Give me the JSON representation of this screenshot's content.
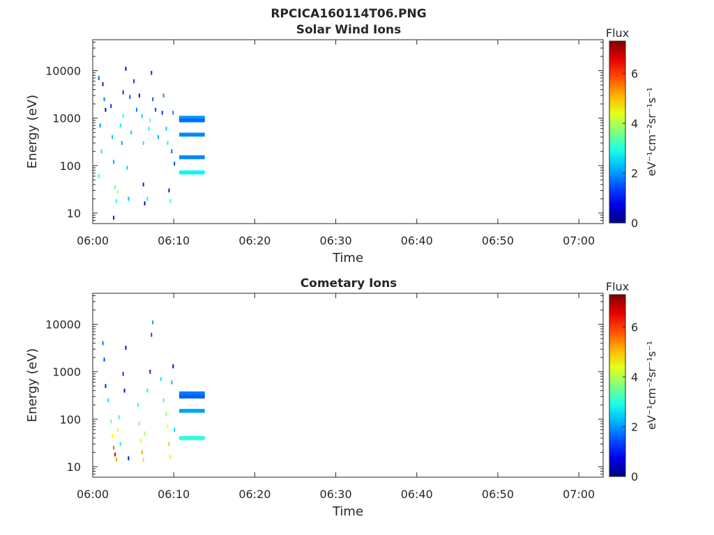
{
  "figure": {
    "title": "RPCICA160114T06.PNG"
  },
  "colors": {
    "axis": "#262626",
    "background": "#ffffff"
  },
  "chart_data": [
    {
      "type": "heatmap",
      "title": "Solar Wind Ions",
      "xlabel": "Time",
      "ylabel": "Energy (eV)",
      "y_scale": "log",
      "xlim": [
        "06:00",
        "07:03"
      ],
      "ylim": [
        6,
        45000
      ],
      "xticks": [
        "06:00",
        "06:10",
        "06:20",
        "06:30",
        "06:40",
        "06:50",
        "07:00"
      ],
      "yticks": [
        "10",
        "100",
        "1000",
        "10000"
      ],
      "grid": false,
      "colorbar": {
        "label": "Flux",
        "unit": "eV⁻¹cm⁻²sr⁻¹s⁻¹",
        "range": [
          0,
          7.3
        ],
        "ticks": [
          "0",
          "2",
          "4",
          "6"
        ],
        "colormap": "jet"
      },
      "cells": [
        {
          "t": "06:00:40",
          "e": 7000,
          "v": 1.6
        },
        {
          "t": "06:01:10",
          "e": 5200,
          "v": 1.1
        },
        {
          "t": "06:01:20",
          "e": 2500,
          "v": 1.8
        },
        {
          "t": "06:01:30",
          "e": 1500,
          "v": 0.7
        },
        {
          "t": "06:00:50",
          "e": 700,
          "v": 2.0
        },
        {
          "t": "06:01:00",
          "e": 200,
          "v": 2.6
        },
        {
          "t": "06:00:40",
          "e": 60,
          "v": 3.0
        },
        {
          "t": "06:02:10",
          "e": 1800,
          "v": 1.3
        },
        {
          "t": "06:02:20",
          "e": 400,
          "v": 2.3
        },
        {
          "t": "06:02:30",
          "e": 120,
          "v": 2.1
        },
        {
          "t": "06:02:40",
          "e": 35,
          "v": 3.4
        },
        {
          "t": "06:02:50",
          "e": 18,
          "v": 2.8
        },
        {
          "t": "06:02:30",
          "e": 8,
          "v": 1.0
        },
        {
          "t": "06:03:00",
          "e": 28,
          "v": 4.0
        },
        {
          "t": "06:03:20",
          "e": 700,
          "v": 2.6
        },
        {
          "t": "06:03:30",
          "e": 300,
          "v": 2.1
        },
        {
          "t": "06:03:40",
          "e": 1100,
          "v": 3.3
        },
        {
          "t": "06:03:40",
          "e": 3500,
          "v": 1.2
        },
        {
          "t": "06:04:00",
          "e": 11000,
          "v": 0.8
        },
        {
          "t": "06:04:10",
          "e": 90,
          "v": 2.4
        },
        {
          "t": "06:04:20",
          "e": 20,
          "v": 2.2
        },
        {
          "t": "06:04:30",
          "e": 2800,
          "v": 1.5
        },
        {
          "t": "06:04:40",
          "e": 500,
          "v": 2.4
        },
        {
          "t": "06:05:00",
          "e": 6000,
          "v": 1.2
        },
        {
          "t": "06:05:20",
          "e": 1500,
          "v": 1.9
        },
        {
          "t": "06:05:40",
          "e": 3000,
          "v": 0.9
        },
        {
          "t": "06:06:00",
          "e": 1100,
          "v": 2.5
        },
        {
          "t": "06:06:10",
          "e": 300,
          "v": 2.7
        },
        {
          "t": "06:06:10",
          "e": 40,
          "v": 1.2
        },
        {
          "t": "06:06:20",
          "e": 16,
          "v": 0.6
        },
        {
          "t": "06:06:40",
          "e": 20,
          "v": 2.8
        },
        {
          "t": "06:06:50",
          "e": 600,
          "v": 2.9
        },
        {
          "t": "06:07:00",
          "e": 900,
          "v": 3.4
        },
        {
          "t": "06:07:10",
          "e": 9000,
          "v": 1.1
        },
        {
          "t": "06:07:20",
          "e": 2500,
          "v": 1.7
        },
        {
          "t": "06:07:40",
          "e": 1500,
          "v": 1.4
        },
        {
          "t": "06:08:00",
          "e": 400,
          "v": 2.2
        },
        {
          "t": "06:08:30",
          "e": 1300,
          "v": 1.3
        },
        {
          "t": "06:08:40",
          "e": 3000,
          "v": 2.0
        },
        {
          "t": "06:09:00",
          "e": 600,
          "v": 2.4
        },
        {
          "t": "06:09:10",
          "e": 300,
          "v": 3.0
        },
        {
          "t": "06:09:20",
          "e": 30,
          "v": 1.0
        },
        {
          "t": "06:09:30",
          "e": 18,
          "v": 3.1
        },
        {
          "t": "06:09:40",
          "e": 200,
          "v": 1.6
        },
        {
          "t": "06:09:50",
          "e": 1300,
          "v": 1.8
        },
        {
          "t": "06:10:00",
          "e": 110,
          "v": 1.4
        },
        {
          "t": "06:10:40",
          "e": 1020,
          "v": 2.0,
          "dur": 190
        },
        {
          "t": "06:10:40",
          "e": 900,
          "v": 1.7,
          "dur": 190
        },
        {
          "t": "06:10:40",
          "e": 450,
          "v": 1.9,
          "dur": 190
        },
        {
          "t": "06:10:40",
          "e": 150,
          "v": 1.9,
          "dur": 190
        },
        {
          "t": "06:10:40",
          "e": 72,
          "v": 2.7,
          "dur": 190
        }
      ]
    },
    {
      "type": "heatmap",
      "title": "Cometary Ions",
      "xlabel": "Time",
      "ylabel": "Energy (eV)",
      "y_scale": "log",
      "xlim": [
        "06:00",
        "07:03"
      ],
      "ylim": [
        6,
        45000
      ],
      "xticks": [
        "06:00",
        "06:10",
        "06:20",
        "06:30",
        "06:40",
        "06:50",
        "07:00"
      ],
      "yticks": [
        "10",
        "100",
        "1000",
        "10000"
      ],
      "grid": false,
      "colorbar": {
        "label": "Flux",
        "unit": "eV⁻¹cm⁻²sr⁻¹s⁻¹",
        "range": [
          0,
          7.3
        ],
        "ticks": [
          "0",
          "2",
          "4",
          "6"
        ],
        "colormap": "jet"
      },
      "cells": [
        {
          "t": "06:01:10",
          "e": 4000,
          "v": 1.7
        },
        {
          "t": "06:01:20",
          "e": 1800,
          "v": 1.4
        },
        {
          "t": "06:01:30",
          "e": 500,
          "v": 1.1
        },
        {
          "t": "06:01:50",
          "e": 250,
          "v": 2.5
        },
        {
          "t": "06:02:10",
          "e": 90,
          "v": 3.6
        },
        {
          "t": "06:02:20",
          "e": 45,
          "v": 4.6
        },
        {
          "t": "06:02:30",
          "e": 25,
          "v": 5.7
        },
        {
          "t": "06:02:40",
          "e": 18,
          "v": 6.7
        },
        {
          "t": "06:02:50",
          "e": 14,
          "v": 5.2
        },
        {
          "t": "06:03:00",
          "e": 60,
          "v": 4.2
        },
        {
          "t": "06:03:10",
          "e": 110,
          "v": 3.2
        },
        {
          "t": "06:03:20",
          "e": 30,
          "v": 2.7
        },
        {
          "t": "06:03:40",
          "e": 900,
          "v": 1.3
        },
        {
          "t": "06:03:50",
          "e": 400,
          "v": 0.9
        },
        {
          "t": "06:04:00",
          "e": 3200,
          "v": 0.9
        },
        {
          "t": "06:04:20",
          "e": 15,
          "v": 1.0
        },
        {
          "t": "06:05:30",
          "e": 200,
          "v": 3.0
        },
        {
          "t": "06:05:40",
          "e": 80,
          "v": 3.5
        },
        {
          "t": "06:05:50",
          "e": 35,
          "v": 4.3
        },
        {
          "t": "06:06:00",
          "e": 20,
          "v": 5.2
        },
        {
          "t": "06:06:10",
          "e": 14,
          "v": 4.8
        },
        {
          "t": "06:06:20",
          "e": 50,
          "v": 3.9
        },
        {
          "t": "06:06:40",
          "e": 400,
          "v": 2.7
        },
        {
          "t": "06:07:00",
          "e": 1000,
          "v": 1.0
        },
        {
          "t": "06:07:10",
          "e": 6000,
          "v": 1.4
        },
        {
          "t": "06:07:20",
          "e": 11000,
          "v": 2.1
        },
        {
          "t": "06:08:20",
          "e": 700,
          "v": 2.6
        },
        {
          "t": "06:08:40",
          "e": 250,
          "v": 3.1
        },
        {
          "t": "06:09:00",
          "e": 130,
          "v": 3.8
        },
        {
          "t": "06:09:10",
          "e": 70,
          "v": 4.4
        },
        {
          "t": "06:09:20",
          "e": 30,
          "v": 5.0
        },
        {
          "t": "06:09:30",
          "e": 16,
          "v": 4.3
        },
        {
          "t": "06:09:40",
          "e": 600,
          "v": 2.3
        },
        {
          "t": "06:09:50",
          "e": 1300,
          "v": 0.8
        },
        {
          "t": "06:10:00",
          "e": 60,
          "v": 2.5
        },
        {
          "t": "06:10:40",
          "e": 350,
          "v": 1.8,
          "dur": 190
        },
        {
          "t": "06:10:40",
          "e": 300,
          "v": 1.6,
          "dur": 190
        },
        {
          "t": "06:10:40",
          "e": 150,
          "v": 2.1,
          "dur": 190
        },
        {
          "t": "06:10:40",
          "e": 40,
          "v": 3.0,
          "dur": 190
        }
      ]
    }
  ]
}
